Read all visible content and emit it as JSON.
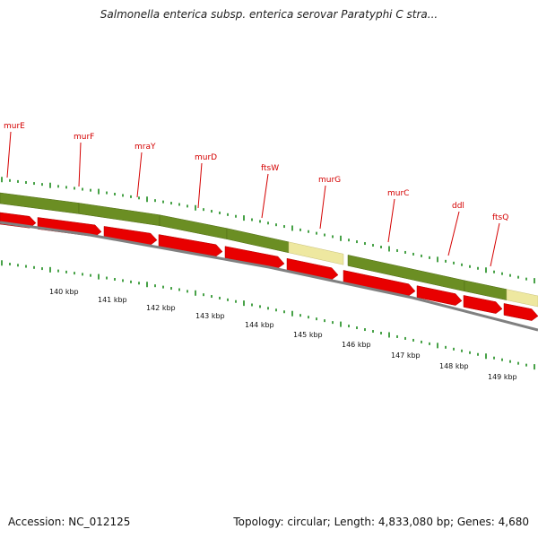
{
  "title": "Salmonella enterica subsp. enterica serovar Paratyphi C stra...",
  "accession": "Accession: NC_012125",
  "summary": "Topology: circular; Length: 4,833,080 bp; Genes: 4,680",
  "colors": {
    "gene_label": "#d40000",
    "cds_arrow": "#e80000",
    "gene_green": "#6b8e23",
    "gene_pale": "#eee8a0",
    "tick_green": "#1a8a1a",
    "backbone": "#808080"
  },
  "genes": [
    {
      "name": "murE",
      "type": "green"
    },
    {
      "name": "murF",
      "type": "green"
    },
    {
      "name": "mraY",
      "type": "green"
    },
    {
      "name": "murD",
      "type": "green"
    },
    {
      "name": "ftsW",
      "type": "pale"
    },
    {
      "name": "murG",
      "type": "green"
    },
    {
      "name": "murC",
      "type": "green"
    },
    {
      "name": "ddl",
      "type": "green"
    },
    {
      "name": "ftsQ",
      "type": "pale"
    }
  ],
  "scale_labels": [
    "140 kbp",
    "141 kbp",
    "142 kbp",
    "143 kbp",
    "144 kbp",
    "145 kbp",
    "146 kbp",
    "147 kbp",
    "148 kbp",
    "149 kbp"
  ]
}
